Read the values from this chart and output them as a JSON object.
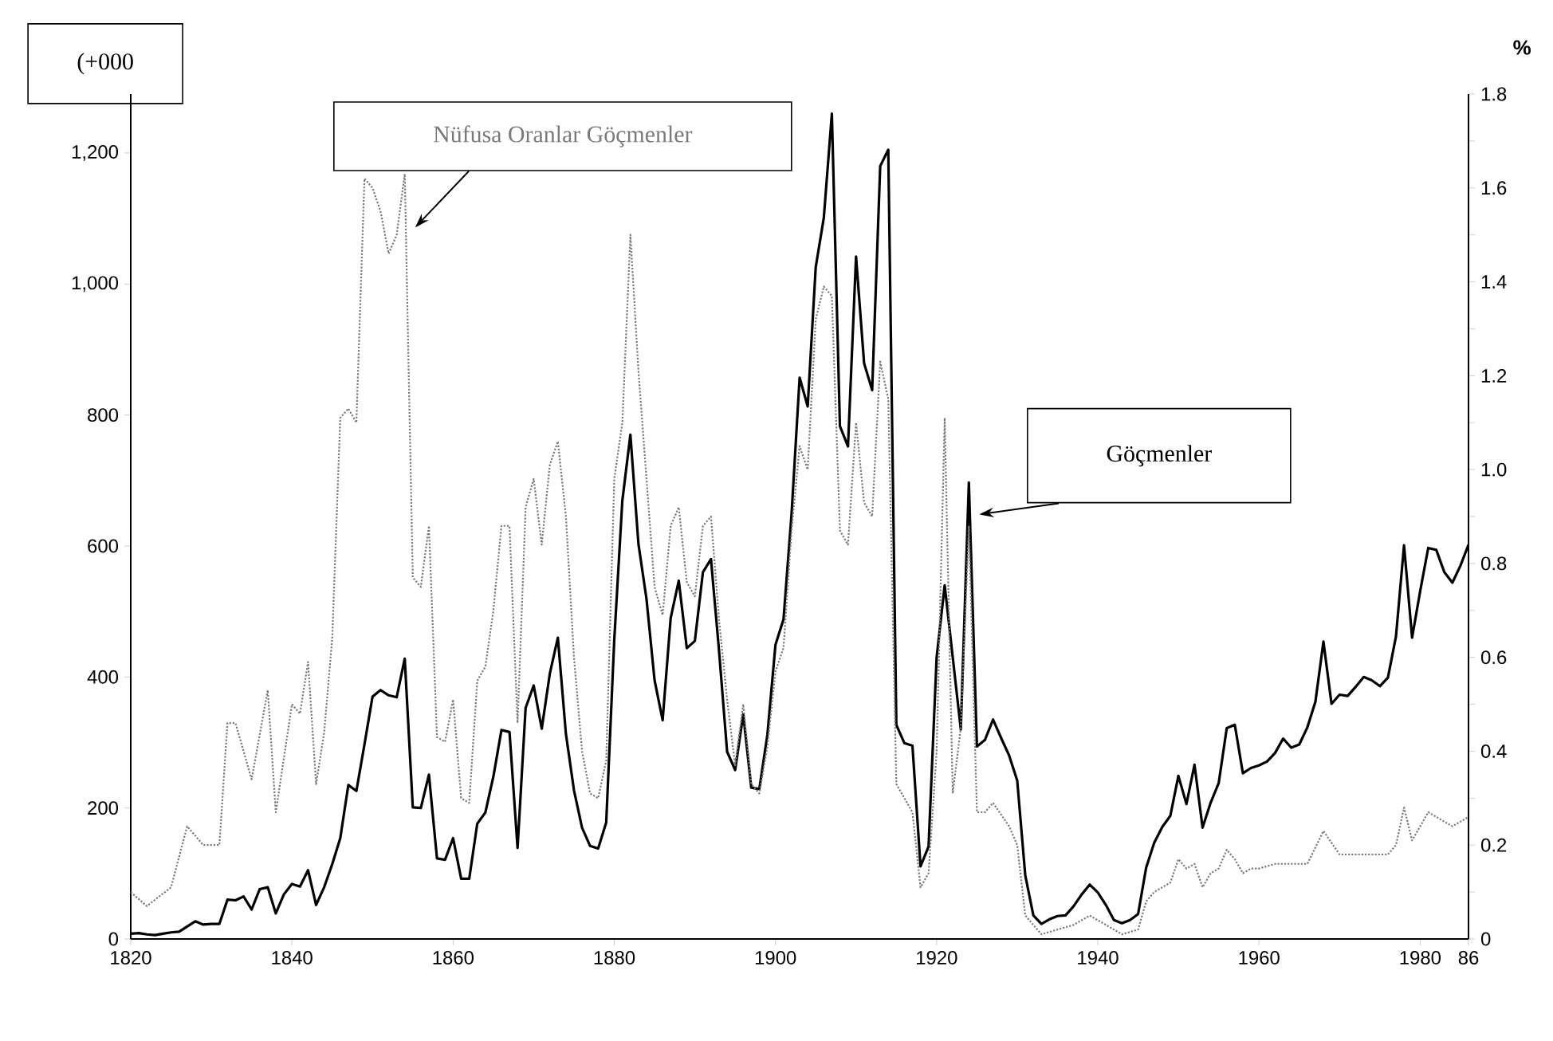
{
  "chart_data": {
    "type": "line",
    "ylabel": "(+000",
    "y2label": "%",
    "xlim": [
      1820,
      1986
    ],
    "xticks": [
      1820,
      1840,
      1860,
      1880,
      1900,
      1920,
      1940,
      1960,
      1980,
      {
        "value": 1986,
        "label": "86"
      }
    ],
    "ylim": [
      0,
      1290
    ],
    "yticks": [
      0,
      200,
      400,
      600,
      800,
      {
        "value": 1000,
        "label": "1,000"
      },
      {
        "value": 1200,
        "label": "1,200"
      }
    ],
    "y2lim": [
      0,
      1.8
    ],
    "y2ticks": [
      0,
      {
        "value": 0.1,
        "label": null
      },
      0.2,
      {
        "value": 0.3,
        "label": null
      },
      0.4,
      {
        "value": 0.5,
        "label": null
      },
      0.6,
      {
        "value": 0.7,
        "label": null
      },
      0.8,
      {
        "value": 0.9,
        "label": null
      },
      {
        "value": 1.0,
        "label": "1.0"
      },
      {
        "value": 1.1,
        "label": null
      },
      1.2,
      {
        "value": 1.3,
        "label": null
      },
      1.4,
      {
        "value": 1.5,
        "label": null
      },
      1.6,
      {
        "value": 1.7,
        "label": null
      },
      1.8
    ],
    "series": [
      {
        "name": "Göçmenler",
        "color": "#000000",
        "line_style": "solid",
        "x": [
          1820,
          1821,
          1822,
          1823,
          1824,
          1825,
          1826,
          1827,
          1828,
          1829,
          1830,
          1831,
          1832,
          1833,
          1834,
          1835,
          1836,
          1837,
          1838,
          1839,
          1840,
          1841,
          1842,
          1843,
          1844,
          1845,
          1846,
          1847,
          1848,
          1849,
          1850,
          1851,
          1852,
          1853,
          1854,
          1855,
          1856,
          1857,
          1858,
          1859,
          1860,
          1861,
          1862,
          1863,
          1864,
          1865,
          1866,
          1867,
          1868,
          1869,
          1870,
          1871,
          1872,
          1873,
          1874,
          1875,
          1876,
          1877,
          1878,
          1879,
          1880,
          1881,
          1882,
          1883,
          1884,
          1885,
          1886,
          1887,
          1888,
          1889,
          1890,
          1891,
          1892,
          1893,
          1894,
          1895,
          1896,
          1897,
          1898,
          1899,
          1900,
          1901,
          1902,
          1903,
          1904,
          1905,
          1906,
          1907,
          1908,
          1909,
          1910,
          1911,
          1912,
          1913,
          1914,
          1915,
          1916,
          1917,
          1918,
          1919,
          1920,
          1921,
          1922,
          1923,
          1924,
          1925,
          1926,
          1927,
          1928,
          1929,
          1930,
          1931,
          1932,
          1933,
          1934,
          1935,
          1936,
          1937,
          1938,
          1939,
          1940,
          1941,
          1942,
          1943,
          1944,
          1945,
          1946,
          1947,
          1948,
          1949,
          1950,
          1951,
          1952,
          1953,
          1954,
          1955,
          1956,
          1957,
          1958,
          1959,
          1960,
          1961,
          1962,
          1963,
          1964,
          1965,
          1966,
          1967,
          1968,
          1969,
          1970,
          1971,
          1972,
          1973,
          1974,
          1975,
          1976,
          1977,
          1978,
          1979,
          1980,
          1981,
          1982,
          1983,
          1984,
          1985,
          1986
        ],
        "values": [
          8,
          9,
          7,
          6,
          8,
          10,
          11,
          19,
          27,
          22,
          23,
          23,
          60,
          59,
          65,
          45,
          76,
          79,
          39,
          68,
          84,
          80,
          105,
          52,
          79,
          114,
          154,
          235,
          226,
          297,
          370,
          380,
          372,
          369,
          428,
          201,
          200,
          251,
          123,
          121,
          154,
          92,
          92,
          176,
          193,
          248,
          319,
          316,
          139,
          353,
          387,
          321,
          405,
          460,
          313,
          227,
          170,
          142,
          138,
          178,
          457,
          669,
          770,
          603,
          519,
          395,
          334,
          490,
          547,
          444,
          455,
          560,
          580,
          440,
          286,
          258,
          343,
          231,
          229,
          312,
          449,
          488,
          649,
          857,
          813,
          1026,
          1101,
          1260,
          783,
          752,
          1042,
          879,
          838,
          1180,
          1205,
          327,
          299,
          295,
          111,
          141,
          430,
          540,
          430,
          320,
          697,
          294,
          304,
          335,
          307,
          280,
          242,
          97,
          36,
          23,
          30,
          35,
          36,
          50,
          68,
          83,
          71,
          52,
          29,
          24,
          29,
          38,
          109,
          147,
          171,
          188,
          249,
          206,
          266,
          170,
          208,
          238,
          322,
          327,
          253,
          261,
          265,
          271,
          284,
          306,
          292,
          297,
          323,
          362,
          454,
          359,
          373,
          371,
          385,
          400,
          395,
          386,
          399,
          462,
          601,
          460,
          531,
          597,
          594,
          560,
          544,
          570,
          602
        ]
      },
      {
        "name": "Nüfusa Oranlar Göçmenler",
        "axis": "y2",
        "color": "#7a7a7a",
        "line_style": "dotted",
        "x": [
          1820,
          1822,
          1825,
          1827,
          1829,
          1831,
          1832,
          1833,
          1835,
          1837,
          1838,
          1840,
          1841,
          1842,
          1843,
          1844,
          1845,
          1846,
          1847,
          1848,
          1849,
          1850,
          1851,
          1852,
          1853,
          1854,
          1855,
          1856,
          1857,
          1858,
          1859,
          1860,
          1861,
          1862,
          1863,
          1864,
          1865,
          1866,
          1867,
          1868,
          1869,
          1870,
          1871,
          1872,
          1873,
          1874,
          1875,
          1876,
          1877,
          1878,
          1879,
          1880,
          1881,
          1882,
          1883,
          1884,
          1885,
          1886,
          1887,
          1888,
          1889,
          1890,
          1891,
          1892,
          1893,
          1894,
          1895,
          1896,
          1897,
          1898,
          1899,
          1900,
          1901,
          1902,
          1903,
          1904,
          1905,
          1906,
          1907,
          1908,
          1909,
          1910,
          1911,
          1912,
          1913,
          1914,
          1915,
          1916,
          1917,
          1918,
          1919,
          1920,
          1921,
          1922,
          1923,
          1924,
          1925,
          1926,
          1927,
          1929,
          1930,
          1931,
          1933,
          1935,
          1937,
          1939,
          1941,
          1943,
          1945,
          1946,
          1947,
          1948,
          1949,
          1950,
          1951,
          1952,
          1953,
          1954,
          1955,
          1956,
          1957,
          1958,
          1959,
          1960,
          1962,
          1964,
          1966,
          1968,
          1970,
          1972,
          1974,
          1976,
          1977,
          1978,
          1979,
          1981,
          1983,
          1984,
          1986
        ],
        "values": [
          0.1,
          0.07,
          0.11,
          0.24,
          0.2,
          0.2,
          0.46,
          0.46,
          0.34,
          0.53,
          0.27,
          0.5,
          0.48,
          0.59,
          0.33,
          0.44,
          0.64,
          1.11,
          1.13,
          1.1,
          1.62,
          1.6,
          1.55,
          1.46,
          1.5,
          1.63,
          0.77,
          0.75,
          0.88,
          0.43,
          0.42,
          0.51,
          0.3,
          0.29,
          0.55,
          0.58,
          0.7,
          0.88,
          0.88,
          0.46,
          0.92,
          0.98,
          0.84,
          1.01,
          1.06,
          0.9,
          0.6,
          0.4,
          0.31,
          0.3,
          0.38,
          0.98,
          1.1,
          1.5,
          1.21,
          0.98,
          0.75,
          0.69,
          0.88,
          0.92,
          0.76,
          0.73,
          0.88,
          0.9,
          0.68,
          0.51,
          0.37,
          0.5,
          0.33,
          0.31,
          0.41,
          0.57,
          0.62,
          0.87,
          1.05,
          1.0,
          1.32,
          1.39,
          1.37,
          0.87,
          0.84,
          1.1,
          0.93,
          0.9,
          1.23,
          1.15,
          0.33,
          0.3,
          0.27,
          0.11,
          0.14,
          0.4,
          1.11,
          0.31,
          0.45,
          0.88,
          0.27,
          0.27,
          0.29,
          0.24,
          0.2,
          0.05,
          0.01,
          0.02,
          0.03,
          0.05,
          0.03,
          0.01,
          0.02,
          0.08,
          0.1,
          0.11,
          0.12,
          0.17,
          0.15,
          0.16,
          0.11,
          0.14,
          0.15,
          0.19,
          0.17,
          0.14,
          0.15,
          0.15,
          0.16,
          0.16,
          0.16,
          0.23,
          0.18,
          0.18,
          0.18,
          0.18,
          0.2,
          0.28,
          0.21,
          0.27,
          0.25,
          0.24,
          0.26
        ]
      }
    ]
  }
}
